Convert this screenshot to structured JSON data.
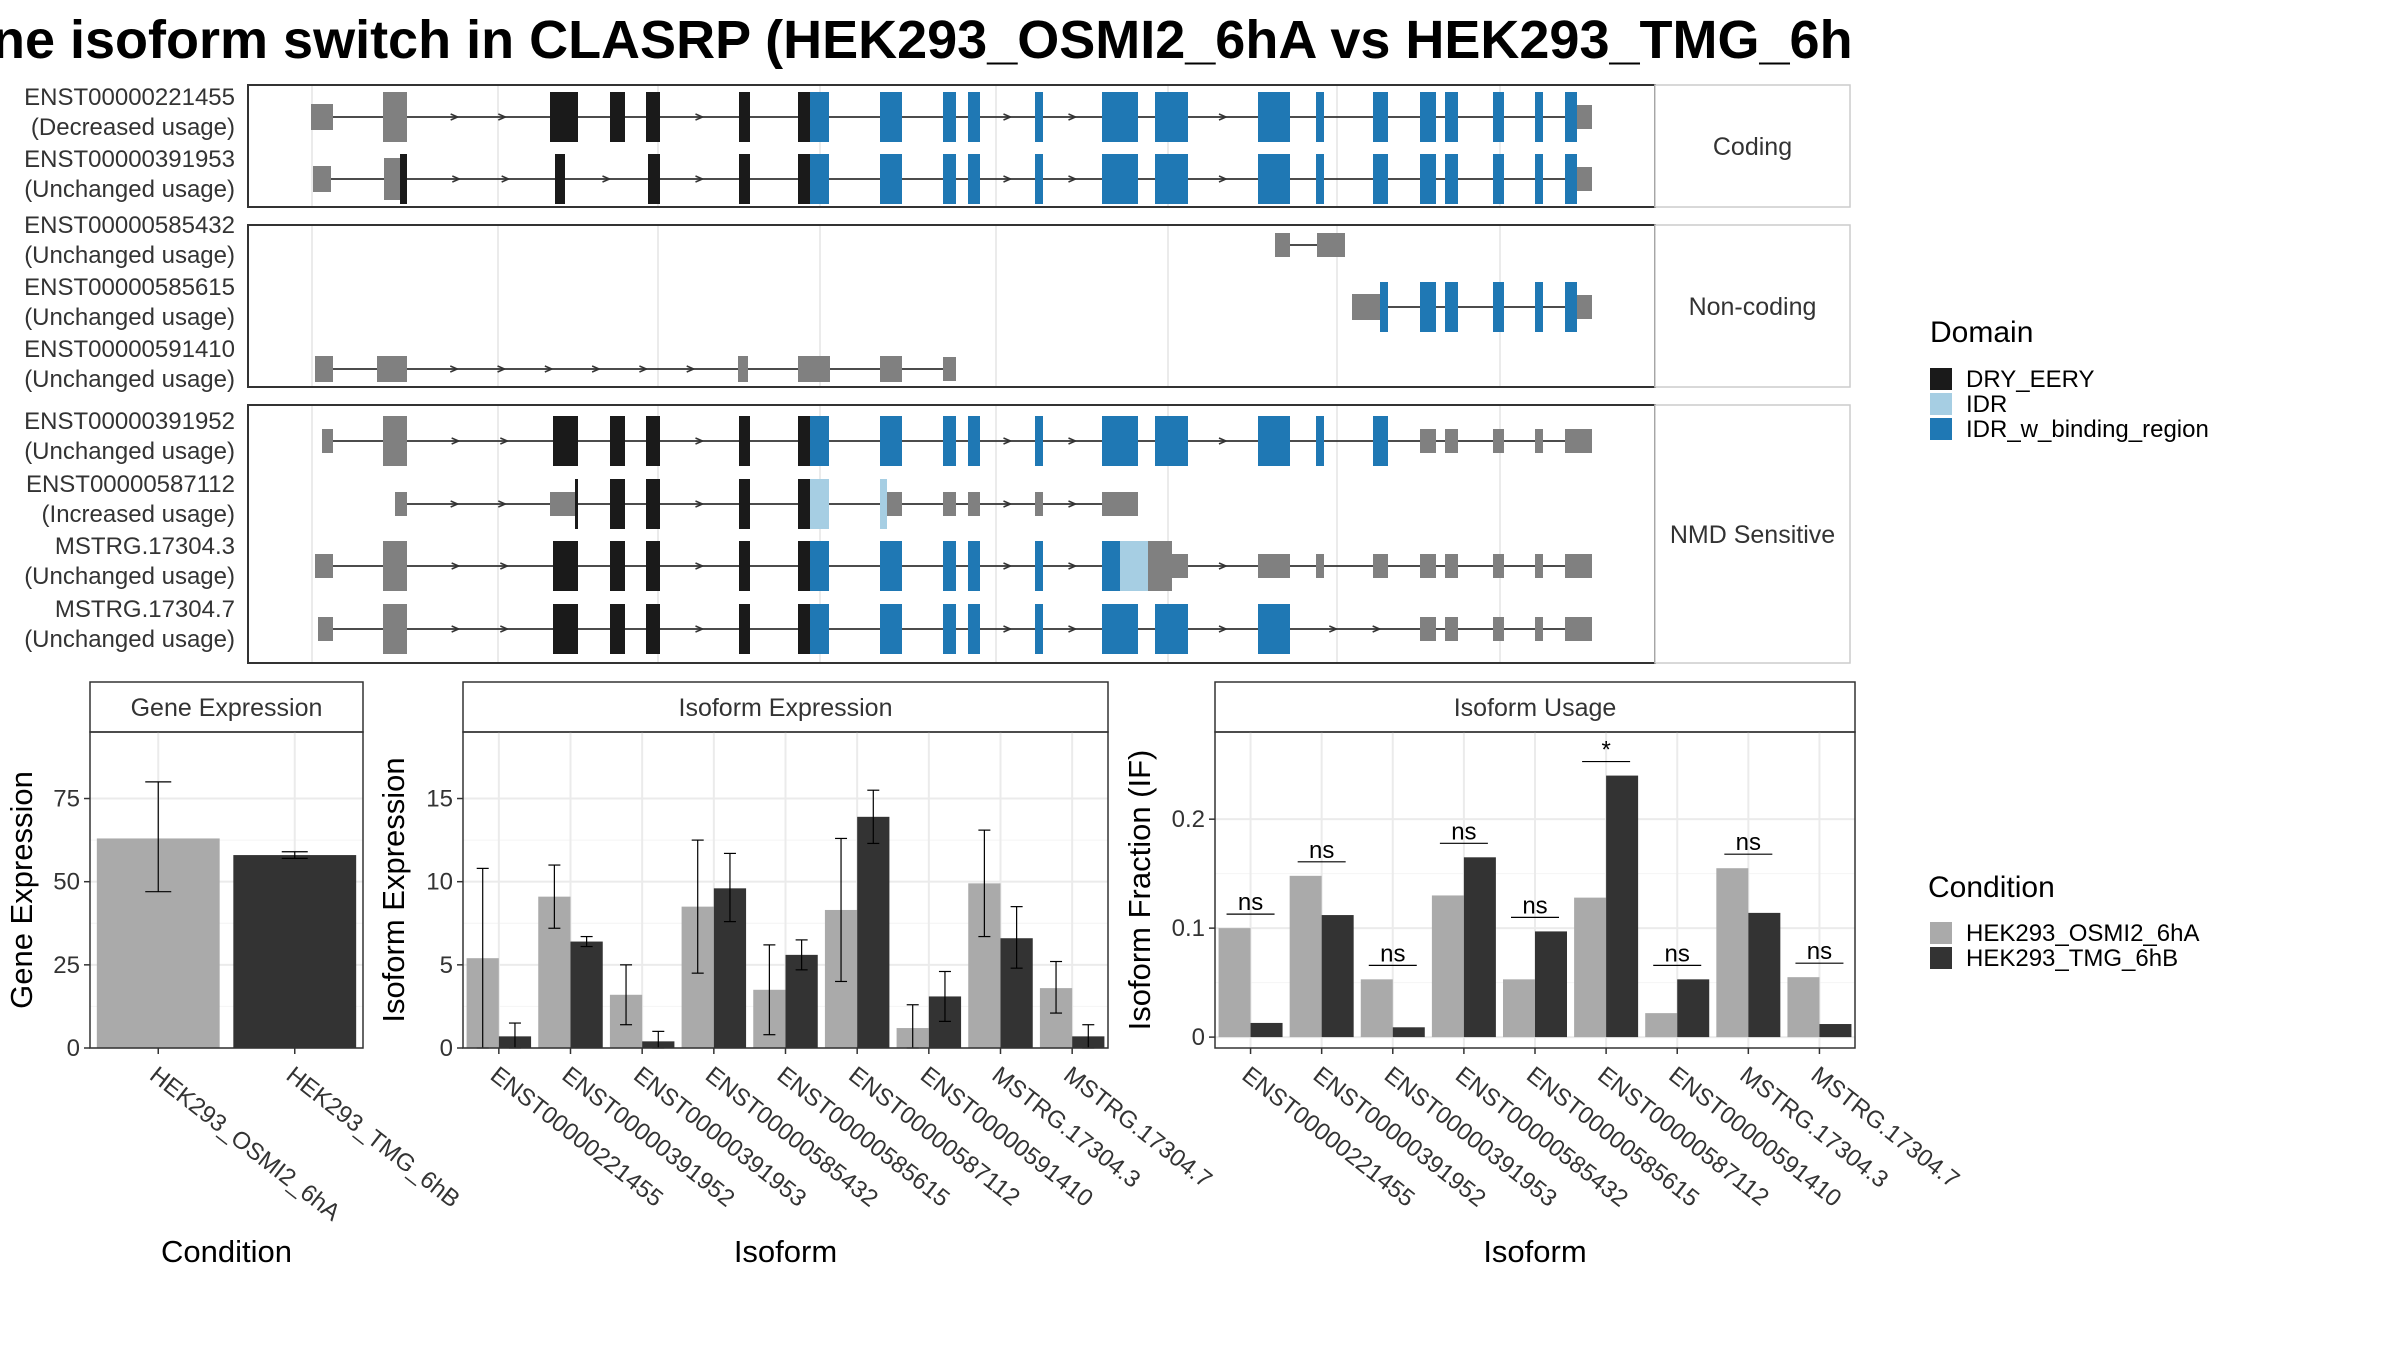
{
  "title": "ne isoform switch in CLASRP (HEK293_OSMI2_6hA vs HEK293_TMG_6h",
  "colors": {
    "drying": "#1a1a1a",
    "idr": "#a6cee3",
    "idr_binding": "#1f78b4",
    "utr": "#808080",
    "cond1": "#aaaaaa",
    "cond2": "#333333"
  },
  "structure": {
    "facets": [
      {
        "label": "Coding",
        "transcripts": [
          {
            "id": "ENST00000221455",
            "usage": "(Decreased usage)",
            "track": "A"
          },
          {
            "id": "ENST00000391953",
            "usage": "(Unchanged usage)",
            "track": "B"
          }
        ]
      },
      {
        "label": "Non-coding",
        "transcripts": [
          {
            "id": "ENST00000585432",
            "usage": "(Unchanged usage)",
            "track": "C"
          },
          {
            "id": "ENST00000585615",
            "usage": "(Unchanged usage)",
            "track": "D"
          },
          {
            "id": "ENST00000591410",
            "usage": "(Unchanged usage)",
            "track": "E"
          }
        ]
      },
      {
        "label": "NMD Sensitive",
        "transcripts": [
          {
            "id": "ENST00000391952",
            "usage": "(Unchanged usage)",
            "track": "F"
          },
          {
            "id": "ENST00000587112",
            "usage": "(Increased usage)",
            "track": "G"
          },
          {
            "id": "MSTRG.17304.3",
            "usage": "(Unchanged usage)",
            "track": "H"
          },
          {
            "id": "MSTRG.17304.7",
            "usage": "(Unchanged usage)",
            "track": "I"
          }
        ]
      }
    ]
  },
  "legend_domain": {
    "title": "Domain",
    "items": [
      {
        "label": "DRY_EERY",
        "color": "#1a1a1a"
      },
      {
        "label": "IDR",
        "color": "#a6cee3"
      },
      {
        "label": "IDR_w_binding_region",
        "color": "#1f78b4"
      }
    ]
  },
  "legend_condition": {
    "title": "Condition",
    "items": [
      {
        "label": "HEK293_OSMI2_6hA",
        "color": "#aaaaaa"
      },
      {
        "label": "HEK293_TMG_6hB",
        "color": "#333333"
      }
    ]
  },
  "chart_data": [
    {
      "type": "bar",
      "title": "Gene Expression",
      "xlabel": "Condition",
      "ylabel": "Gene Expression",
      "categories": [
        "HEK293_OSMI2_6hA",
        "HEK293_TMG_6hB"
      ],
      "values": [
        63,
        58
      ],
      "error_low": [
        47,
        57
      ],
      "error_high": [
        80,
        59
      ],
      "ylim": [
        0,
        95
      ],
      "yticks": [
        0,
        25,
        50,
        75
      ]
    },
    {
      "type": "bar",
      "title": "Isoform Expression",
      "xlabel": "Isoform",
      "ylabel": "Isoform Expression",
      "categories": [
        "ENST00000221455",
        "ENST00000391952",
        "ENST00000391953",
        "ENST00000585432",
        "ENST00000585615",
        "ENST00000587112",
        "ENST00000591410",
        "MSTRG.17304.3",
        "MSTRG.17304.7"
      ],
      "series": [
        {
          "name": "HEK293_OSMI2_6hA",
          "values": [
            5.4,
            9.1,
            3.2,
            8.5,
            3.5,
            8.3,
            1.2,
            9.9,
            3.6
          ],
          "error_low": [
            0.0,
            7.2,
            1.4,
            4.5,
            0.8,
            4.0,
            0.0,
            6.7,
            2.1
          ],
          "error_high": [
            10.8,
            11.0,
            5.0,
            12.5,
            6.2,
            12.6,
            2.6,
            13.1,
            5.2
          ]
        },
        {
          "name": "HEK293_TMG_6hB",
          "values": [
            0.7,
            6.4,
            0.4,
            9.6,
            5.6,
            13.9,
            3.1,
            6.6,
            0.7
          ],
          "error_low": [
            0.0,
            6.1,
            0.0,
            7.6,
            4.7,
            12.3,
            1.6,
            4.8,
            0.0
          ],
          "error_high": [
            1.5,
            6.7,
            1.0,
            11.7,
            6.5,
            15.5,
            4.6,
            8.5,
            1.4
          ]
        }
      ],
      "ylim": [
        0,
        19
      ],
      "yticks": [
        0,
        5,
        10,
        15
      ]
    },
    {
      "type": "bar",
      "title": "Isoform Usage",
      "xlabel": "Isoform",
      "ylabel": "Isoform Fraction (IF)",
      "categories": [
        "ENST00000221455",
        "ENST00000391952",
        "ENST00000391953",
        "ENST00000585432",
        "ENST00000585615",
        "ENST00000587112",
        "ENST00000591410",
        "MSTRG.17304.3",
        "MSTRG.17304.7"
      ],
      "series": [
        {
          "name": "HEK293_OSMI2_6hA",
          "values": [
            0.1,
            0.148,
            0.053,
            0.13,
            0.053,
            0.128,
            0.022,
            0.155,
            0.055
          ]
        },
        {
          "name": "HEK293_TMG_6hB",
          "values": [
            0.013,
            0.112,
            0.009,
            0.165,
            0.097,
            0.24,
            0.053,
            0.114,
            0.012
          ]
        }
      ],
      "significance": [
        "ns",
        "ns",
        "ns",
        "ns",
        "ns",
        "*",
        "ns",
        "ns",
        "ns"
      ],
      "ylim": [
        -0.01,
        0.28
      ],
      "yticks": [
        0.0,
        0.1,
        0.2
      ]
    }
  ]
}
